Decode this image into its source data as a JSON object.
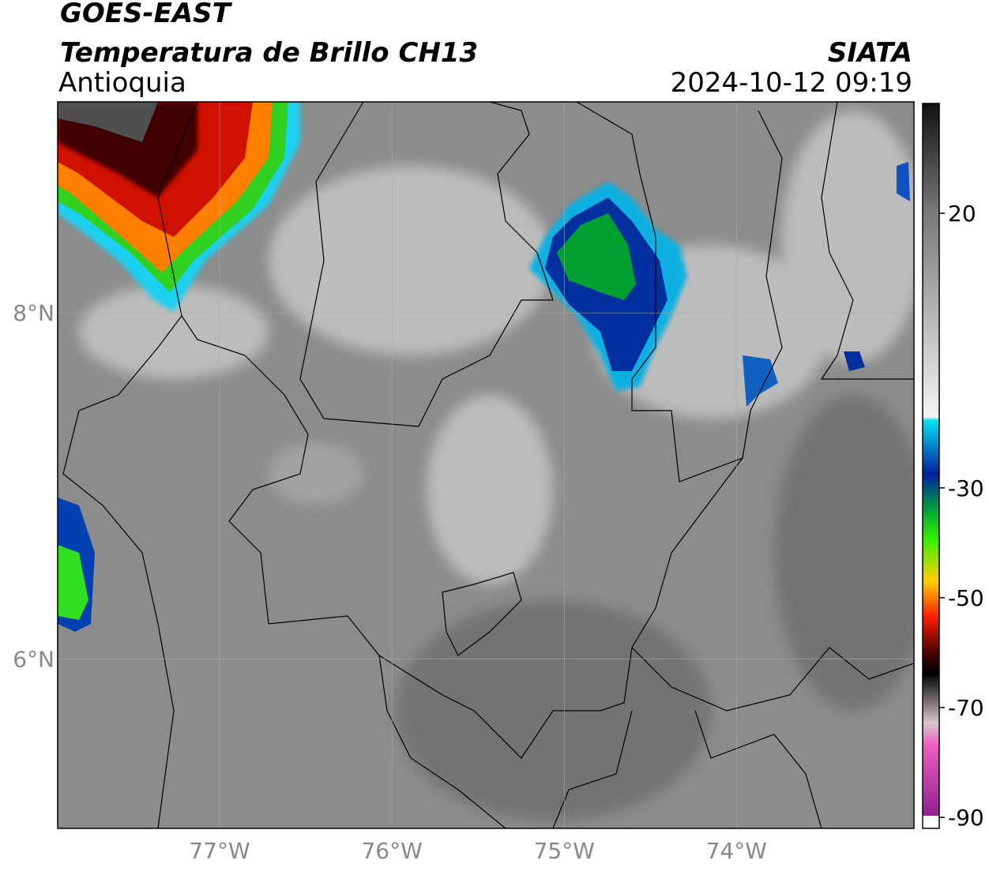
{
  "header": {
    "satellite": "GOES-EAST",
    "product": "Temperatura de Brillo CH13",
    "region": "Antioquia",
    "agency": "SIATA",
    "datetime": "2024-10-12 09:19"
  },
  "map": {
    "xlim": [
      -77.94,
      -72.97
    ],
    "ylim": [
      5.02,
      9.22
    ],
    "xticks": [
      {
        "value": -77,
        "label": "77°W"
      },
      {
        "value": -76,
        "label": "76°W"
      },
      {
        "value": -75,
        "label": "75°W"
      },
      {
        "value": -74,
        "label": "74°W"
      }
    ],
    "yticks": [
      {
        "value": 8,
        "label": "8°N"
      },
      {
        "value": 6,
        "label": "6°N"
      }
    ],
    "grid": true
  },
  "colorbar": {
    "lim": [
      -92,
      40
    ],
    "ticks": [
      20,
      -30,
      -50,
      -70,
      -90
    ]
  }
}
